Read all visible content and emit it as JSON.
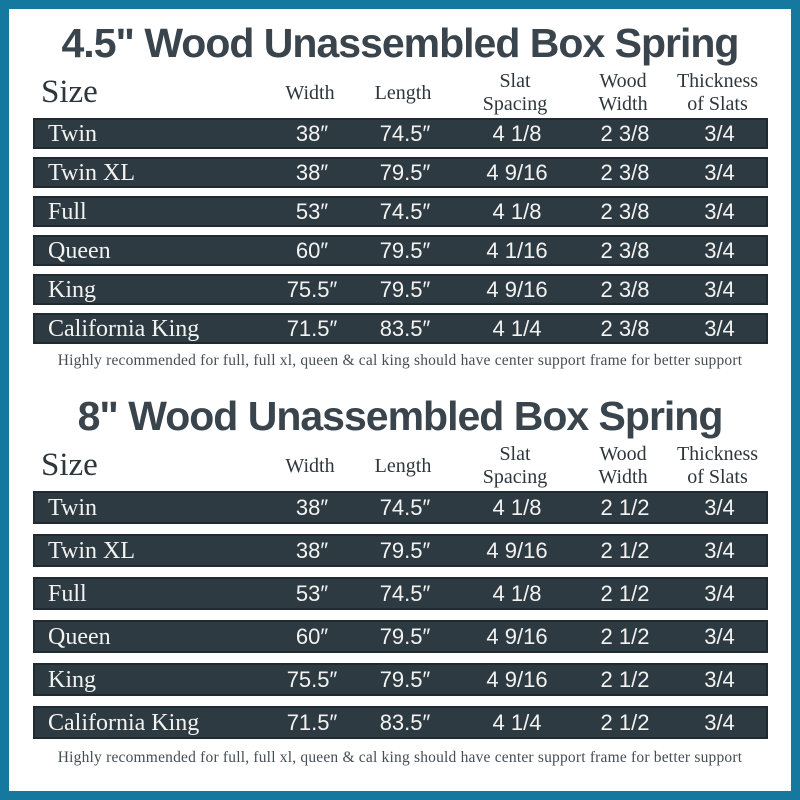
{
  "page": {
    "border_color": "#15789f",
    "row_bg_color": "#2e3a42",
    "title_color": "#3a444c",
    "text_color_on_row": "#f2f3f1"
  },
  "tables": [
    {
      "title": "4.5\" Wood Unassembled Box Spring",
      "columns": [
        "Size",
        "Width",
        "Length",
        "Slat\nSpacing",
        "Wood\nWidth",
        "Thickness\nof Slats"
      ],
      "rows": [
        {
          "size": "Twin",
          "width": "38″",
          "length": "74.5″",
          "slat_spacing": "4 1/8",
          "wood_width": "2 3/8",
          "thickness": "3/4"
        },
        {
          "size": "Twin XL",
          "width": "38″",
          "length": "79.5″",
          "slat_spacing": "4 9/16",
          "wood_width": "2 3/8",
          "thickness": "3/4"
        },
        {
          "size": "Full",
          "width": "53″",
          "length": "74.5″",
          "slat_spacing": "4 1/8",
          "wood_width": "2 3/8",
          "thickness": "3/4"
        },
        {
          "size": "Queen",
          "width": "60″",
          "length": "79.5″",
          "slat_spacing": "4 1/16",
          "wood_width": "2 3/8",
          "thickness": "3/4"
        },
        {
          "size": "King",
          "width": "75.5″",
          "length": "79.5″",
          "slat_spacing": "4 9/16",
          "wood_width": "2 3/8",
          "thickness": "3/4"
        },
        {
          "size": "California King",
          "width": "71.5″",
          "length": "83.5″",
          "slat_spacing": "4 1/4",
          "wood_width": "2 3/8",
          "thickness": "3/4"
        }
      ],
      "footnote": "Highly recommended for full, full xl, queen & cal king should have center support frame  for better support"
    },
    {
      "title": "8\" Wood Unassembled Box Spring",
      "columns": [
        "Size",
        "Width",
        "Length",
        "Slat\nSpacing",
        "Wood\nWidth",
        "Thickness\nof Slats"
      ],
      "rows": [
        {
          "size": "Twin",
          "width": "38″",
          "length": "74.5″",
          "slat_spacing": "4 1/8",
          "wood_width": "2 1/2",
          "thickness": "3/4"
        },
        {
          "size": "Twin XL",
          "width": "38″",
          "length": "79.5″",
          "slat_spacing": "4 9/16",
          "wood_width": "2 1/2",
          "thickness": "3/4"
        },
        {
          "size": "Full",
          "width": "53″",
          "length": "74.5″",
          "slat_spacing": "4 1/8",
          "wood_width": "2 1/2",
          "thickness": "3/4"
        },
        {
          "size": "Queen",
          "width": "60″",
          "length": "79.5″",
          "slat_spacing": "4 9/16",
          "wood_width": "2 1/2",
          "thickness": "3/4"
        },
        {
          "size": "King",
          "width": "75.5″",
          "length": "79.5″",
          "slat_spacing": "4 9/16",
          "wood_width": "2 1/2",
          "thickness": "3/4"
        },
        {
          "size": "California King",
          "width": "71.5″",
          "length": "83.5″",
          "slat_spacing": "4 1/4",
          "wood_width": "2 1/2",
          "thickness": "3/4"
        }
      ],
      "footnote": "Highly recommended for full, full xl, queen & cal king should have center support frame  for better support"
    }
  ]
}
